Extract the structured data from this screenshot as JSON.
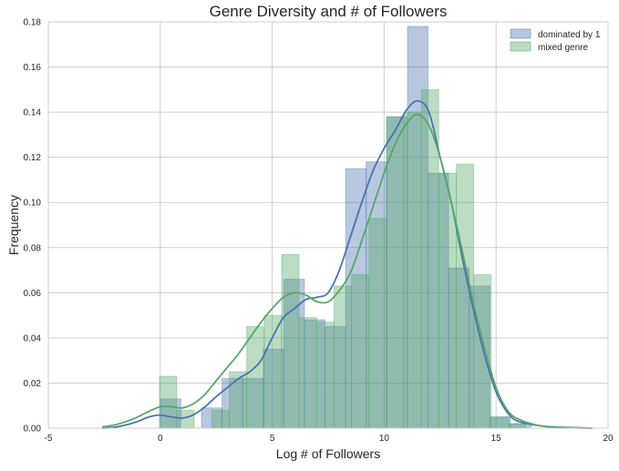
{
  "chart_data": {
    "type": "bar",
    "title": "Genre Diversity and # of Followers",
    "xlabel": "Log # of Followers",
    "ylabel": "Frequency",
    "xlim": [
      -5,
      20
    ],
    "ylim": [
      0,
      0.18
    ],
    "xticks": [
      "-5",
      "0",
      "5",
      "10",
      "15",
      "20"
    ],
    "yticks": [
      "0.00",
      "0.02",
      "0.04",
      "0.06",
      "0.08",
      "0.10",
      "0.12",
      "0.14",
      "0.16",
      "0.18"
    ],
    "grid": true,
    "legend_position": "top-right",
    "series": [
      {
        "name": "dominated by 1",
        "color": "#4c72b0",
        "bin_width": 0.92,
        "bins": [
          {
            "x0": 0.0,
            "y": 0.013
          },
          {
            "x0": 0.92,
            "y": 0.0
          },
          {
            "x0": 1.84,
            "y": 0.009
          },
          {
            "x0": 2.76,
            "y": 0.022
          },
          {
            "x0": 3.68,
            "y": 0.022
          },
          {
            "x0": 4.6,
            "y": 0.035
          },
          {
            "x0": 5.52,
            "y": 0.066
          },
          {
            "x0": 6.44,
            "y": 0.048
          },
          {
            "x0": 7.36,
            "y": 0.045
          },
          {
            "x0": 8.28,
            "y": 0.115
          },
          {
            "x0": 9.2,
            "y": 0.118
          },
          {
            "x0": 10.12,
            "y": 0.138
          },
          {
            "x0": 11.04,
            "y": 0.178
          },
          {
            "x0": 11.96,
            "y": 0.113
          },
          {
            "x0": 12.88,
            "y": 0.071
          },
          {
            "x0": 13.8,
            "y": 0.063
          },
          {
            "x0": 14.72,
            "y": 0.005
          },
          {
            "x0": 15.64,
            "y": 0.002
          }
        ],
        "kde": [
          [
            -2.6,
            0.0
          ],
          [
            -2.0,
            0.0005
          ],
          [
            -1.5,
            0.0015
          ],
          [
            -1.0,
            0.003
          ],
          [
            -0.5,
            0.005
          ],
          [
            0.0,
            0.0058
          ],
          [
            0.5,
            0.005
          ],
          [
            1.0,
            0.0045
          ],
          [
            1.5,
            0.006
          ],
          [
            2.0,
            0.0095
          ],
          [
            2.5,
            0.014
          ],
          [
            3.0,
            0.018
          ],
          [
            3.5,
            0.022
          ],
          [
            4.0,
            0.025
          ],
          [
            4.5,
            0.03
          ],
          [
            5.0,
            0.04
          ],
          [
            5.5,
            0.049
          ],
          [
            6.0,
            0.053
          ],
          [
            6.5,
            0.057
          ],
          [
            7.0,
            0.058
          ],
          [
            7.5,
            0.06
          ],
          [
            8.0,
            0.07
          ],
          [
            8.5,
            0.085
          ],
          [
            9.0,
            0.1
          ],
          [
            9.5,
            0.114
          ],
          [
            10.0,
            0.124
          ],
          [
            10.5,
            0.132
          ],
          [
            11.0,
            0.141
          ],
          [
            11.5,
            0.145
          ],
          [
            12.0,
            0.14
          ],
          [
            12.5,
            0.12
          ],
          [
            13.0,
            0.1
          ],
          [
            13.5,
            0.075
          ],
          [
            14.0,
            0.052
          ],
          [
            14.5,
            0.032
          ],
          [
            15.0,
            0.016
          ],
          [
            15.5,
            0.007
          ],
          [
            16.0,
            0.003
          ],
          [
            17.0,
            0.001
          ],
          [
            18.0,
            0.0004
          ],
          [
            19.3,
            0.0
          ]
        ]
      },
      {
        "name": "mixed genre",
        "color": "#55a868",
        "bin_width": 0.78,
        "bins": [
          {
            "x0": -0.04,
            "y": 0.023
          },
          {
            "x0": 0.74,
            "y": 0.008
          },
          {
            "x0": 1.52,
            "y": 0.0
          },
          {
            "x0": 2.3,
            "y": 0.008
          },
          {
            "x0": 3.08,
            "y": 0.025
          },
          {
            "x0": 3.86,
            "y": 0.045
          },
          {
            "x0": 4.64,
            "y": 0.05
          },
          {
            "x0": 5.42,
            "y": 0.077
          },
          {
            "x0": 6.2,
            "y": 0.049
          },
          {
            "x0": 6.98,
            "y": 0.047
          },
          {
            "x0": 7.76,
            "y": 0.063
          },
          {
            "x0": 8.54,
            "y": 0.068
          },
          {
            "x0": 9.32,
            "y": 0.093
          },
          {
            "x0": 10.1,
            "y": 0.138
          },
          {
            "x0": 10.88,
            "y": 0.14
          },
          {
            "x0": 11.66,
            "y": 0.15
          },
          {
            "x0": 12.44,
            "y": 0.113
          },
          {
            "x0": 13.22,
            "y": 0.117
          },
          {
            "x0": 14.0,
            "y": 0.068
          },
          {
            "x0": 14.78,
            "y": 0.005
          },
          {
            "x0": 15.56,
            "y": 0.002
          }
        ],
        "kde": [
          [
            -2.6,
            0.0005
          ],
          [
            -2.0,
            0.0015
          ],
          [
            -1.5,
            0.003
          ],
          [
            -1.0,
            0.005
          ],
          [
            -0.5,
            0.0075
          ],
          [
            0.0,
            0.0095
          ],
          [
            0.5,
            0.0095
          ],
          [
            1.0,
            0.009
          ],
          [
            1.5,
            0.011
          ],
          [
            2.0,
            0.015
          ],
          [
            2.5,
            0.021
          ],
          [
            3.0,
            0.027
          ],
          [
            3.5,
            0.033
          ],
          [
            4.0,
            0.04
          ],
          [
            4.5,
            0.047
          ],
          [
            5.0,
            0.053
          ],
          [
            5.5,
            0.058
          ],
          [
            6.0,
            0.06
          ],
          [
            6.5,
            0.059
          ],
          [
            7.0,
            0.056
          ],
          [
            7.5,
            0.056
          ],
          [
            8.0,
            0.061
          ],
          [
            8.5,
            0.069
          ],
          [
            9.0,
            0.083
          ],
          [
            9.5,
            0.098
          ],
          [
            10.0,
            0.113
          ],
          [
            10.5,
            0.126
          ],
          [
            11.0,
            0.135
          ],
          [
            11.5,
            0.139
          ],
          [
            12.0,
            0.134
          ],
          [
            12.5,
            0.12
          ],
          [
            13.0,
            0.1
          ],
          [
            13.5,
            0.078
          ],
          [
            14.0,
            0.055
          ],
          [
            14.5,
            0.035
          ],
          [
            15.0,
            0.018
          ],
          [
            15.5,
            0.008
          ],
          [
            16.0,
            0.004
          ],
          [
            17.0,
            0.001
          ],
          [
            18.0,
            0.0003
          ],
          [
            19.3,
            0.0
          ]
        ]
      }
    ]
  }
}
